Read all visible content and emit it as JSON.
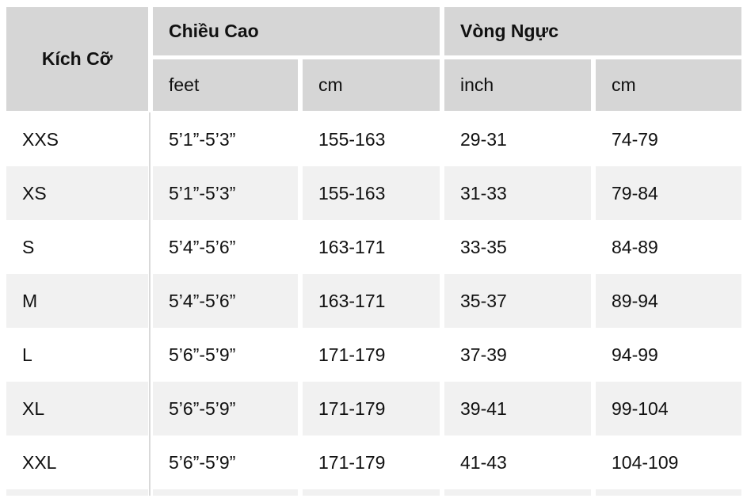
{
  "colors": {
    "page_background": "#ffffff",
    "header_background": "#d6d6d6",
    "stripe_background": "#f1f1f1",
    "divider": "#d9d9d9",
    "text": "#111111"
  },
  "table": {
    "header": {
      "size_label": "Kích Cỡ",
      "height_label": "Chiều Cao",
      "chest_label": "Vòng Ngực",
      "height_unit_feet": "feet",
      "height_unit_cm": "cm",
      "chest_unit_inch": "inch",
      "chest_unit_cm": "cm"
    },
    "rows": [
      {
        "size": "XXS",
        "height_feet": "5’1”-5’3”",
        "height_cm": "155-163",
        "chest_inch": "29-31",
        "chest_cm": "74-79"
      },
      {
        "size": "XS",
        "height_feet": "5’1”-5’3”",
        "height_cm": "155-163",
        "chest_inch": "31-33",
        "chest_cm": "79-84"
      },
      {
        "size": "S",
        "height_feet": "5’4”-5’6”",
        "height_cm": "163-171",
        "chest_inch": "33-35",
        "chest_cm": "84-89"
      },
      {
        "size": "M",
        "height_feet": "5’4”-5’6”",
        "height_cm": "163-171",
        "chest_inch": "35-37",
        "chest_cm": "89-94"
      },
      {
        "size": "L",
        "height_feet": "5’6”-5’9”",
        "height_cm": "171-179",
        "chest_inch": "37-39",
        "chest_cm": "94-99"
      },
      {
        "size": "XL",
        "height_feet": "5’6”-5’9”",
        "height_cm": "171-179",
        "chest_inch": "39-41",
        "chest_cm": "99-104"
      },
      {
        "size": "XXL",
        "height_feet": "5’6”-5’9”",
        "height_cm": "171-179",
        "chest_inch": "41-43",
        "chest_cm": "104-109"
      }
    ]
  },
  "chart_data": {
    "type": "table",
    "title": "",
    "columns": [
      "Kích Cỡ",
      "Chiều Cao (feet)",
      "Chiều Cao (cm)",
      "Vòng Ngực (inch)",
      "Vòng Ngực (cm)"
    ],
    "rows": [
      [
        "XXS",
        "5’1”-5’3”",
        "155-163",
        "29-31",
        "74-79"
      ],
      [
        "XS",
        "5’1”-5’3”",
        "155-163",
        "31-33",
        "79-84"
      ],
      [
        "S",
        "5’4”-5’6”",
        "163-171",
        "33-35",
        "84-89"
      ],
      [
        "M",
        "5’4”-5’6”",
        "163-171",
        "35-37",
        "89-94"
      ],
      [
        "L",
        "5’6”-5’9”",
        "171-179",
        "37-39",
        "94-99"
      ],
      [
        "XL",
        "5’6”-5’9”",
        "171-179",
        "39-41",
        "99-104"
      ],
      [
        "XXL",
        "5’6”-5’9”",
        "171-179",
        "41-43",
        "104-109"
      ]
    ],
    "layout_hints": {
      "header_rows": 2,
      "grouped_headers": [
        {
          "label": "Kích Cỡ",
          "span": 1
        },
        {
          "label": "Chiều Cao",
          "span": 2,
          "sub": [
            "feet",
            "cm"
          ]
        },
        {
          "label": "Vòng Ngực",
          "span": 2,
          "sub": [
            "inch",
            "cm"
          ]
        }
      ],
      "striped_rows": true,
      "partial_row_visible_at_bottom": true
    }
  }
}
